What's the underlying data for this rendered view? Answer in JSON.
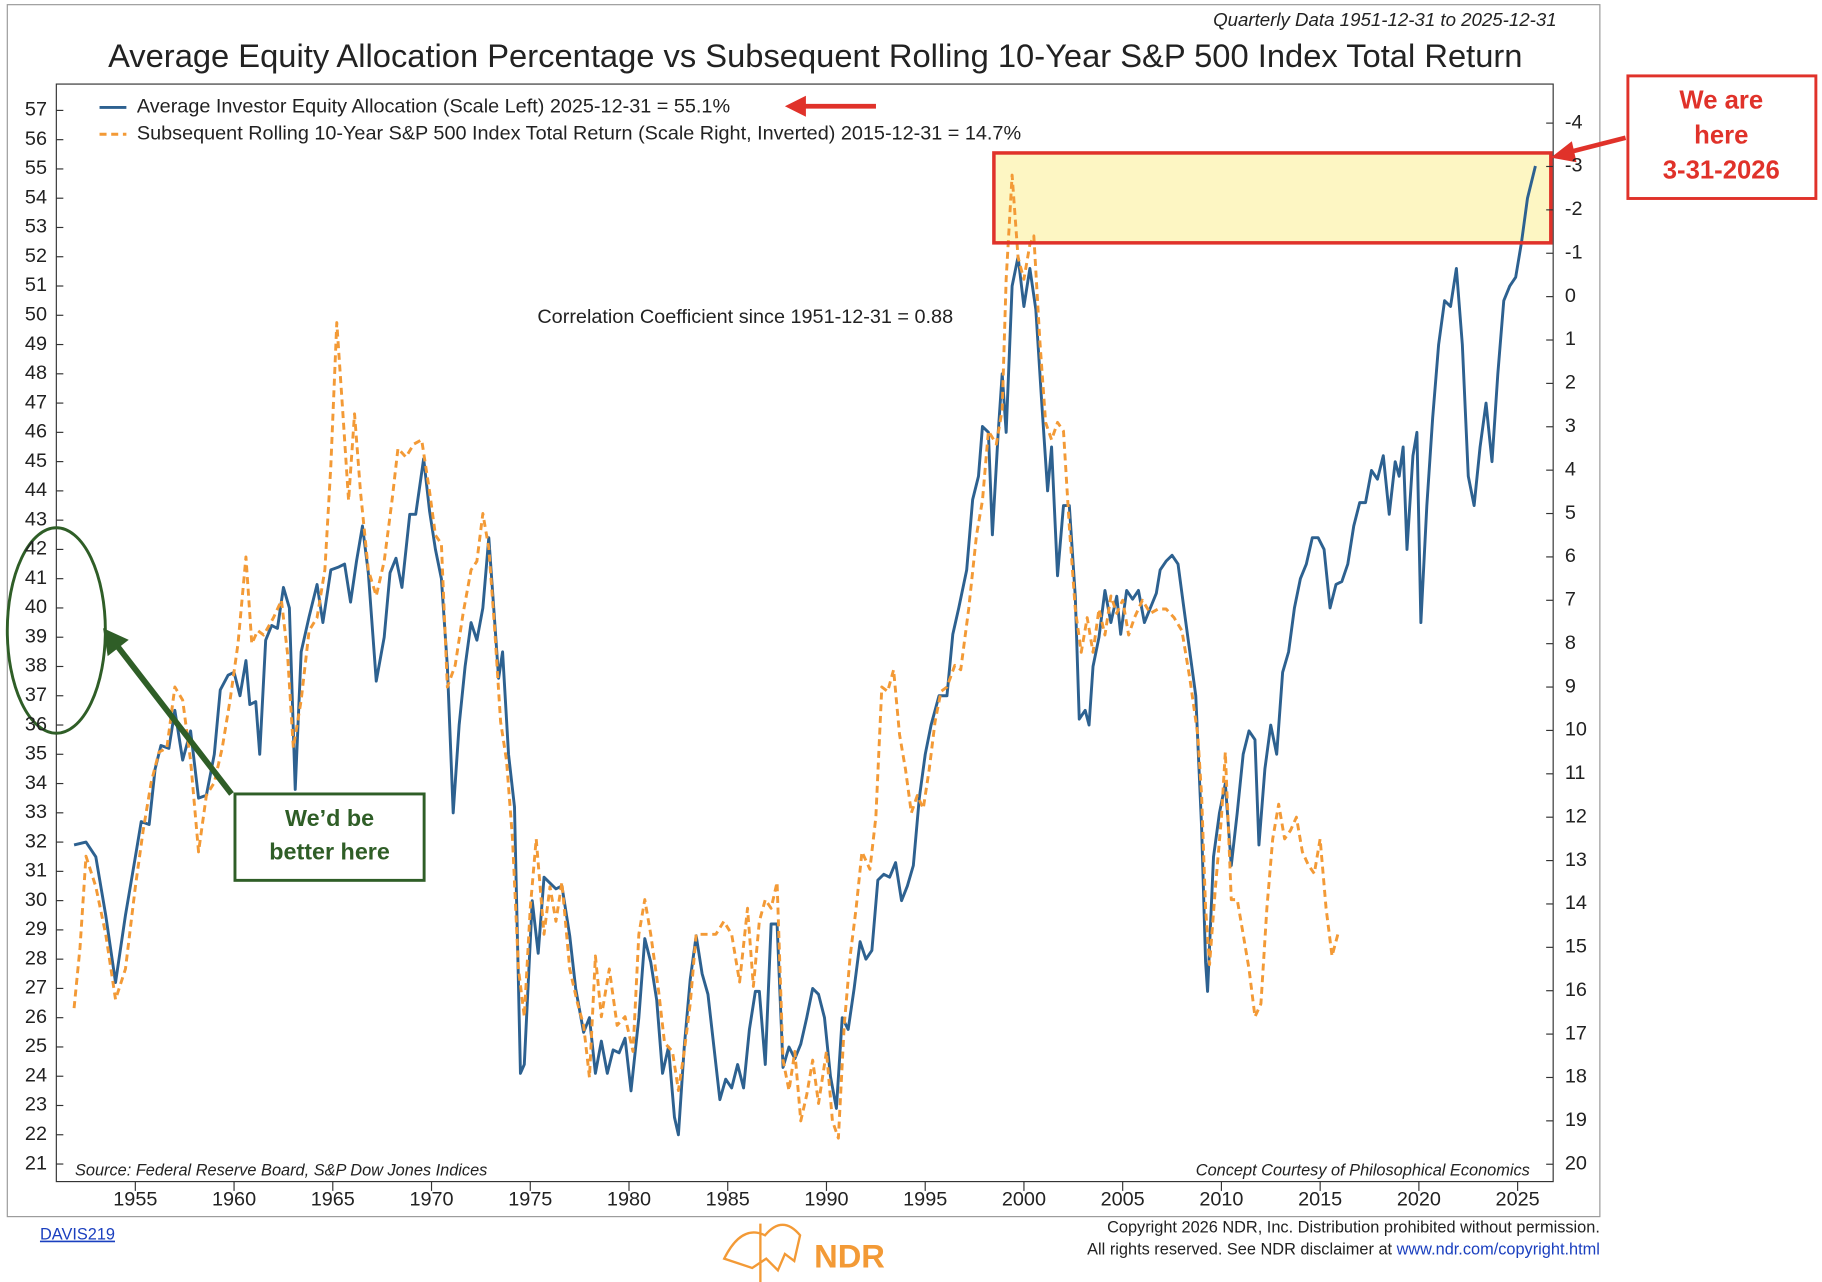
{
  "chart_data": {
    "type": "line",
    "subtitle": "Quarterly Data 1951-12-31 to 2025-12-31",
    "title": "Average Equity Allocation Percentage vs Subsequent Rolling 10-Year S&P 500 Index Total Return",
    "xlim": [
      1951,
      2026.8
    ],
    "xticks": [
      1955,
      1960,
      1965,
      1970,
      1975,
      1980,
      1985,
      1990,
      1995,
      2000,
      2005,
      2010,
      2015,
      2020,
      2025
    ],
    "ylim": [
      20.4,
      57.9
    ],
    "yticks": [
      21,
      22,
      23,
      24,
      25,
      26,
      27,
      28,
      29,
      30,
      31,
      32,
      33,
      34,
      35,
      36,
      37,
      38,
      39,
      40,
      41,
      42,
      43,
      44,
      45,
      46,
      47,
      48,
      49,
      50,
      51,
      52,
      53,
      54,
      55,
      56,
      57
    ],
    "y2lim": [
      -4.9,
      20.4
    ],
    "y2_inverted": true,
    "y2ticks": [
      -4,
      -3,
      -2,
      -1,
      0,
      1,
      2,
      3,
      4,
      5,
      6,
      7,
      8,
      9,
      10,
      11,
      12,
      13,
      14,
      15,
      16,
      17,
      18,
      19,
      20
    ],
    "series": [
      {
        "name": "Average Investor Equity Allocation (Scale Left) 2025-12-31 = 55.1%",
        "color": "#2d6190",
        "axis": "y",
        "x": [
          1951.9,
          1952.5,
          1953,
          1953.5,
          1954,
          1954.5,
          1955,
          1955.3,
          1955.7,
          1956,
          1956.3,
          1956.7,
          1957,
          1957.4,
          1957.8,
          1958.2,
          1958.6,
          1959,
          1959.3,
          1959.7,
          1960,
          1960.3,
          1960.6,
          1960.8,
          1961.1,
          1961.3,
          1961.6,
          1961.9,
          1962.2,
          1962.5,
          1962.8,
          1963.1,
          1963.4,
          1963.8,
          1964.2,
          1964.5,
          1964.9,
          1965.3,
          1965.6,
          1965.9,
          1966.2,
          1966.5,
          1966.8,
          1967.2,
          1967.6,
          1967.9,
          1968.2,
          1968.5,
          1968.9,
          1969.2,
          1969.6,
          1969.9,
          1970.2,
          1970.5,
          1970.8,
          1971.1,
          1971.4,
          1971.7,
          1972,
          1972.3,
          1972.6,
          1972.9,
          1973.2,
          1973.4,
          1973.6,
          1973.9,
          1974.2,
          1974.5,
          1974.7,
          1975.1,
          1975.4,
          1975.7,
          1976,
          1976.3,
          1976.6,
          1977,
          1977.3,
          1977.7,
          1978,
          1978.3,
          1978.6,
          1978.9,
          1979.2,
          1979.5,
          1979.8,
          1980.1,
          1980.5,
          1980.8,
          1981.1,
          1981.4,
          1981.7,
          1982,
          1982.3,
          1982.5,
          1982.8,
          1983.1,
          1983.4,
          1983.7,
          1984,
          1984.3,
          1984.6,
          1984.9,
          1985.2,
          1985.5,
          1985.8,
          1986.1,
          1986.4,
          1986.6,
          1986.9,
          1987.2,
          1987.5,
          1987.8,
          1988.1,
          1988.4,
          1988.7,
          1989,
          1989.3,
          1989.6,
          1989.9,
          1990.2,
          1990.5,
          1990.8,
          1991.1,
          1991.4,
          1991.7,
          1992,
          1992.3,
          1992.6,
          1992.9,
          1993.2,
          1993.5,
          1993.8,
          1994.1,
          1994.4,
          1994.7,
          1995,
          1995.3,
          1995.7,
          1996.1,
          1996.4,
          1996.7,
          1997.1,
          1997.4,
          1997.7,
          1997.9,
          1998.2,
          1998.4,
          1998.7,
          1998.9,
          1999.1,
          1999.4,
          1999.7,
          2000,
          2000.3,
          2000.6,
          2000.9,
          2001.2,
          2001.4,
          2001.7,
          2002,
          2002.3,
          2002.6,
          2002.8,
          2003.1,
          2003.3,
          2003.5,
          2003.8,
          2004.1,
          2004.4,
          2004.7,
          2004.9,
          2005.2,
          2005.5,
          2005.8,
          2006.1,
          2006.4,
          2006.7,
          2006.9,
          2007.2,
          2007.5,
          2007.8,
          2008.1,
          2008.4,
          2008.7,
          2009,
          2009.2,
          2009.3,
          2009.6,
          2009.9,
          2010.2,
          2010.5,
          2010.8,
          2011.1,
          2011.4,
          2011.7,
          2011.9,
          2012.2,
          2012.5,
          2012.8,
          2013.1,
          2013.4,
          2013.7,
          2014,
          2014.3,
          2014.6,
          2014.9,
          2015.2,
          2015.5,
          2015.8,
          2016.1,
          2016.4,
          2016.7,
          2017,
          2017.3,
          2017.6,
          2017.9,
          2018.2,
          2018.5,
          2018.8,
          2019,
          2019.2,
          2019.4,
          2019.7,
          2019.9,
          2020.1,
          2020.4,
          2020.7,
          2021,
          2021.3,
          2021.6,
          2021.9,
          2022.2,
          2022.5,
          2022.8,
          2023.1,
          2023.4,
          2023.7,
          2024,
          2024.3,
          2024.6,
          2024.9,
          2025.2,
          2025.5,
          2025.9
        ],
        "values": [
          31.9,
          32.0,
          31.5,
          29.5,
          27.2,
          29.5,
          31.5,
          32.7,
          32.6,
          34.5,
          35.3,
          35.2,
          36.5,
          34.8,
          35.8,
          33.5,
          33.6,
          35.0,
          37.2,
          37.7,
          37.8,
          37.0,
          38.2,
          36.7,
          36.8,
          35.0,
          38.9,
          39.4,
          39.3,
          40.7,
          40.0,
          33.8,
          38.5,
          39.7,
          40.8,
          39.5,
          41.3,
          41.4,
          41.5,
          40.2,
          41.6,
          42.8,
          41.2,
          37.5,
          39.0,
          41.2,
          41.7,
          40.7,
          43.2,
          43.2,
          45.1,
          43.3,
          42.0,
          41.0,
          38.0,
          33.0,
          36.0,
          38.0,
          39.5,
          38.9,
          40.0,
          42.4,
          39.5,
          37.6,
          38.5,
          35.0,
          33.2,
          24.1,
          24.4,
          30.0,
          28.2,
          30.8,
          30.6,
          30.4,
          30.5,
          28.8,
          27.0,
          25.5,
          26.0,
          24.1,
          25.2,
          24.1,
          24.9,
          24.8,
          25.3,
          23.5,
          26.0,
          28.7,
          27.9,
          26.6,
          24.1,
          25.0,
          22.6,
          22.0,
          25.0,
          27.3,
          28.8,
          27.5,
          26.8,
          25.0,
          23.2,
          23.9,
          23.6,
          24.4,
          23.6,
          25.6,
          26.9,
          26.9,
          24.4,
          29.2,
          29.2,
          24.3,
          25.0,
          24.6,
          25.1,
          26.0,
          27.0,
          26.8,
          26.0,
          24.0,
          22.9,
          26.0,
          25.6,
          27.0,
          28.6,
          28.0,
          28.3,
          30.7,
          30.9,
          30.8,
          31.3,
          30.0,
          30.5,
          31.2,
          33.5,
          35.0,
          36.0,
          37.0,
          37.0,
          39.1,
          40.0,
          41.3,
          43.7,
          44.5,
          46.2,
          46.0,
          42.5,
          46.0,
          48.0,
          46.0,
          51.0,
          52.0,
          50.3,
          51.6,
          50.2,
          47.0,
          44.0,
          45.5,
          41.1,
          43.5,
          43.5,
          40.4,
          36.2,
          36.5,
          36.0,
          38.0,
          39.0,
          40.6,
          39.5,
          40.4,
          39.1,
          40.6,
          40.3,
          40.6,
          39.5,
          40.0,
          40.5,
          41.3,
          41.6,
          41.8,
          41.5,
          40.0,
          38.5,
          37.0,
          32.5,
          27.9,
          26.9,
          31.5,
          33.0,
          34.0,
          31.2,
          33.0,
          35.0,
          35.8,
          35.5,
          31.9,
          34.5,
          36.0,
          35.0,
          37.8,
          38.5,
          40.0,
          41.0,
          41.5,
          42.4,
          42.4,
          42.0,
          40.0,
          40.8,
          40.9,
          41.5,
          42.8,
          43.6,
          43.6,
          44.7,
          44.4,
          45.2,
          43.2,
          45.0,
          44.5,
          45.5,
          42.0,
          45.2,
          46.0,
          39.5,
          43.5,
          46.5,
          49.0,
          50.5,
          50.3,
          51.6,
          49.0,
          44.5,
          43.5,
          45.5,
          47.0,
          45.0,
          48.0,
          50.5,
          51.0,
          51.3,
          52.5,
          54.0,
          55.1
        ]
      },
      {
        "name": "Subsequent Rolling 10-Year S&P 500 Index Total Return (Scale Right, Inverted) 2015-12-31 = 14.7%",
        "color": "#f39a36",
        "axis": "y2",
        "x": [
          1951.9,
          1952.2,
          1952.5,
          1953,
          1953.5,
          1954,
          1954.5,
          1955,
          1955.4,
          1955.8,
          1956.2,
          1956.6,
          1957,
          1957.4,
          1957.8,
          1958.2,
          1958.6,
          1959,
          1959.4,
          1959.8,
          1960.2,
          1960.6,
          1960.9,
          1961.2,
          1961.5,
          1962,
          1962.4,
          1962.7,
          1963,
          1963.4,
          1963.8,
          1964.2,
          1964.6,
          1964.9,
          1965.2,
          1965.5,
          1965.8,
          1966.1,
          1966.4,
          1966.8,
          1967.2,
          1967.6,
          1968,
          1968.3,
          1968.7,
          1969.1,
          1969.5,
          1969.9,
          1970.2,
          1970.5,
          1970.8,
          1971.2,
          1971.6,
          1972,
          1972.3,
          1972.6,
          1972.9,
          1973.2,
          1973.5,
          1973.8,
          1974.1,
          1974.4,
          1974.7,
          1975,
          1975.3,
          1975.7,
          1976,
          1976.3,
          1976.6,
          1977,
          1977.4,
          1977.7,
          1978,
          1978.3,
          1978.6,
          1979,
          1979.4,
          1979.8,
          1980.2,
          1980.5,
          1980.8,
          1981.1,
          1981.5,
          1981.8,
          1982.2,
          1982.5,
          1982.8,
          1983.1,
          1983.4,
          1983.7,
          1984,
          1984.4,
          1984.8,
          1985.2,
          1985.6,
          1986,
          1986.3,
          1986.6,
          1986.9,
          1987.2,
          1987.5,
          1987.8,
          1988.1,
          1988.4,
          1988.7,
          1989,
          1989.3,
          1989.6,
          1990,
          1990.3,
          1990.6,
          1990.9,
          1991.2,
          1991.5,
          1991.8,
          1992.2,
          1992.5,
          1992.8,
          1993.1,
          1993.4,
          1993.7,
          1994,
          1994.3,
          1994.6,
          1994.9,
          1995.2,
          1995.5,
          1995.8,
          1996.1,
          1996.5,
          1996.8,
          1997.2,
          1997.6,
          1997.9,
          1998.2,
          1998.6,
          1998.9,
          1999.1,
          1999.4,
          1999.7,
          2000,
          2000.3,
          2000.5,
          2000.8,
          2001.1,
          2001.4,
          2001.7,
          2002,
          2002.3,
          2002.6,
          2002.9,
          2003.2,
          2003.5,
          2003.8,
          2004.1,
          2004.4,
          2004.7,
          2005,
          2005.3,
          2005.6,
          2006,
          2006.4,
          2006.8,
          2007.2,
          2007.6,
          2008,
          2008.4,
          2008.8,
          2009,
          2009.2,
          2009.4,
          2009.7,
          2010,
          2010.2,
          2010.5,
          2010.8,
          2011.1,
          2011.4,
          2011.7,
          2012,
          2012.3,
          2012.6,
          2012.9,
          2013.2,
          2013.5,
          2013.8,
          2014.1,
          2014.4,
          2014.7,
          2015,
          2015.3,
          2015.6,
          2015.9
        ],
        "values": [
          16.4,
          15.0,
          12.9,
          13.6,
          14.7,
          16.2,
          15.5,
          13.6,
          12.3,
          11.2,
          10.5,
          10.4,
          9.0,
          9.3,
          10.7,
          12.8,
          11.5,
          11.2,
          10.4,
          9.3,
          8.0,
          6.0,
          8.0,
          7.7,
          7.8,
          7.4,
          7.0,
          8.2,
          10.4,
          9.3,
          7.7,
          7.4,
          6.3,
          3.9,
          0.6,
          2.6,
          4.7,
          2.7,
          4.5,
          6.3,
          6.9,
          6.1,
          4.7,
          3.5,
          3.7,
          3.4,
          3.3,
          4.5,
          5.5,
          5.7,
          9.0,
          8.5,
          7.3,
          6.3,
          6.1,
          5.0,
          5.8,
          7.7,
          9.8,
          10.7,
          12.5,
          15.5,
          16.6,
          14.1,
          12.5,
          14.7,
          13.6,
          14.4,
          13.5,
          15.5,
          16.3,
          16.8,
          18.0,
          15.2,
          16.6,
          15.5,
          16.8,
          16.6,
          17.4,
          14.7,
          13.9,
          14.7,
          16.0,
          17.2,
          17.4,
          18.3,
          17.4,
          16.3,
          14.7,
          14.7,
          14.7,
          14.7,
          14.4,
          14.7,
          15.8,
          14.1,
          15.9,
          14.4,
          13.9,
          14.1,
          13.5,
          17.6,
          18.3,
          17.4,
          19.0,
          18.4,
          17.6,
          18.6,
          17.4,
          19.0,
          19.4,
          16.8,
          15.2,
          14.1,
          12.8,
          13.2,
          12.0,
          9.0,
          9.1,
          8.6,
          10.1,
          10.9,
          11.9,
          11.5,
          11.8,
          10.9,
          9.8,
          9.1,
          9.0,
          8.5,
          8.6,
          7.2,
          5.5,
          4.7,
          3.1,
          3.4,
          2.6,
          -0.4,
          -2.8,
          -0.9,
          -0.4,
          -1.2,
          -1.4,
          1.0,
          2.9,
          3.3,
          2.9,
          3.1,
          5.3,
          7.2,
          8.2,
          7.4,
          8.2,
          7.2,
          7.8,
          6.9,
          7.3,
          7.0,
          7.8,
          7.4,
          7.0,
          7.3,
          7.2,
          7.2,
          7.4,
          7.7,
          8.8,
          10.1,
          11.5,
          14.1,
          15.4,
          13.6,
          12.0,
          10.5,
          13.9,
          13.9,
          14.7,
          15.5,
          16.6,
          16.3,
          14.1,
          12.5,
          11.7,
          12.5,
          12.3,
          12.0,
          12.8,
          13.1,
          13.3,
          12.5,
          14.1,
          15.2,
          14.7
        ]
      }
    ],
    "correlation": "Correlation Coefficient since 1951-12-31 = 0.88",
    "source": "Source:  Federal Reserve Board, S&P Dow Jones Indices",
    "concept": "Concept Courtesy of Philosophical Economics",
    "callout_here": [
      "We are",
      "here",
      "3-31-2026"
    ],
    "callout_better": [
      "We’d be",
      "better here"
    ],
    "chart_id": "DAVIS219",
    "logo": "NDR",
    "copyright_line1": "Copyright 2026 NDR, Inc. Distribution prohibited without permission.",
    "copyright_line2": "All rights reserved. See NDR disclaimer at ",
    "copyright_url": "www.ndr.com/copyright.html"
  }
}
